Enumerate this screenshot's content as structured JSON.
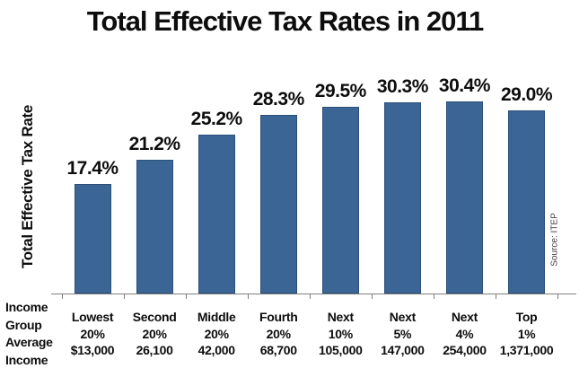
{
  "chart_data": {
    "type": "bar",
    "title": "Total Effective Tax Rates in 2011",
    "ylabel": "Total Effective Tax Rate",
    "source": "Source: ITEP",
    "x_header_lines": [
      "Income",
      "Group",
      "Average",
      "Income"
    ],
    "categories": [
      {
        "group": "Lowest",
        "share": "20%",
        "income": "$13,000"
      },
      {
        "group": "Second",
        "share": "20%",
        "income": "26,100"
      },
      {
        "group": "Middle",
        "share": "20%",
        "income": "42,000"
      },
      {
        "group": "Fourth",
        "share": "20%",
        "income": "68,700"
      },
      {
        "group": "Next",
        "share": "10%",
        "income": "105,000"
      },
      {
        "group": "Next",
        "share": "5%",
        "income": "147,000"
      },
      {
        "group": "Next",
        "share": "4%",
        "income": "254,000"
      },
      {
        "group": "Top",
        "share": "1%",
        "income": "1,371,000"
      }
    ],
    "values": [
      17.4,
      21.2,
      25.2,
      28.3,
      29.5,
      30.3,
      30.4,
      29.0
    ],
    "value_labels": [
      "17.4%",
      "21.2%",
      "25.2%",
      "28.3%",
      "29.5%",
      "30.3%",
      "30.4%",
      "29.0%"
    ],
    "ylim": [
      0,
      33.5
    ],
    "grid": false,
    "legend": "none",
    "bar_color": "#3A6595",
    "bar_border_color": "#2C4F79",
    "axis_color": "#7F7F7F"
  }
}
